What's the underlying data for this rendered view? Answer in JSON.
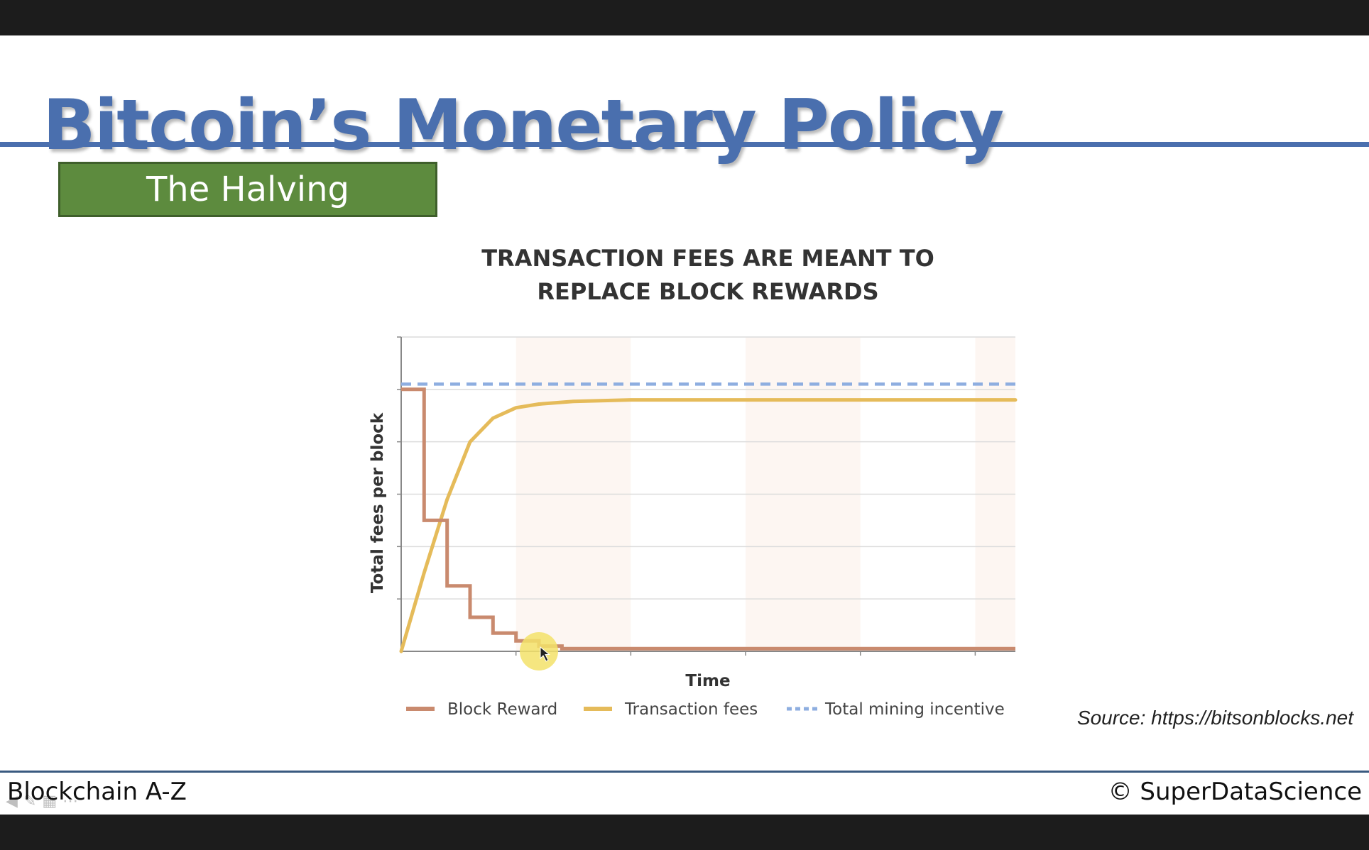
{
  "slide": {
    "title": "Bitcoin’s Monetary Policy",
    "badge": "The Halving",
    "source": "Source: https://bitsonblocks.net",
    "footer_left": "Blockchain A-Z",
    "footer_right": "© SuperDataScience",
    "control_icons": [
      "back-icon",
      "pen-icon",
      "grid-icon",
      "more-icon"
    ]
  },
  "colors": {
    "title": "#4a6fae",
    "badge": "#5d8b3e",
    "block_reward": "#c98a6e",
    "transaction_fees": "#e5bb5a",
    "total_incentive": "#8eaee0",
    "band": "#fdf6f2"
  },
  "chart_data": {
    "type": "line",
    "title_lines": [
      "TRANSACTION FEES ARE MEANT TO",
      "REPLACE BLOCK REWARDS"
    ],
    "xlabel": "Time",
    "ylabel": "Total fees per block",
    "xlim": [
      0,
      5.35
    ],
    "ylim": [
      0,
      6
    ],
    "grid": true,
    "tick_labels": false,
    "legend_position": "bottom",
    "series": [
      {
        "name": "Block Reward",
        "style": "step",
        "color": "#c98a6e",
        "x": [
          0,
          0.2,
          0.2,
          0.4,
          0.4,
          0.6,
          0.6,
          0.8,
          0.8,
          1.0,
          1.0,
          1.2,
          1.2,
          1.4,
          1.4,
          5.35
        ],
        "y": [
          5,
          5,
          2.5,
          2.5,
          1.25,
          1.25,
          0.65,
          0.65,
          0.35,
          0.35,
          0.2,
          0.2,
          0.1,
          0.1,
          0.05,
          0.05
        ]
      },
      {
        "name": "Transaction fees",
        "style": "line",
        "color": "#e5bb5a",
        "x": [
          0,
          0.2,
          0.4,
          0.6,
          0.8,
          1.0,
          1.2,
          1.5,
          2.0,
          3.0,
          4.0,
          5.35
        ],
        "y": [
          0,
          1.5,
          2.9,
          4.0,
          4.45,
          4.65,
          4.72,
          4.77,
          4.8,
          4.8,
          4.8,
          4.8
        ]
      },
      {
        "name": "Total mining incentive",
        "style": "dashed",
        "color": "#8eaee0",
        "x": [
          0,
          5.35
        ],
        "y": [
          5.1,
          5.1
        ]
      }
    ],
    "bands": [
      [
        1.0,
        2.0
      ],
      [
        3.0,
        4.0
      ],
      [
        5.0,
        5.35
      ]
    ]
  }
}
